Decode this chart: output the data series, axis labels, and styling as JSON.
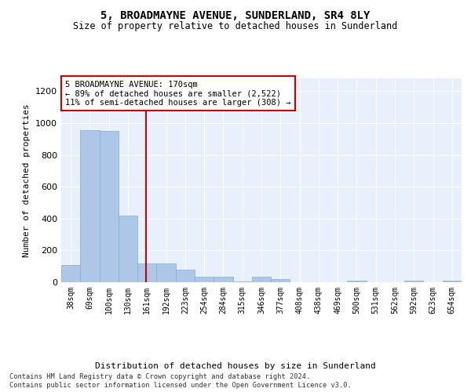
{
  "title": "5, BROADMAYNE AVENUE, SUNDERLAND, SR4 8LY",
  "subtitle": "Size of property relative to detached houses in Sunderland",
  "xlabel": "Distribution of detached houses by size in Sunderland",
  "ylabel": "Number of detached properties",
  "bin_labels": [
    "38sqm",
    "69sqm",
    "100sqm",
    "130sqm",
    "161sqm",
    "192sqm",
    "223sqm",
    "254sqm",
    "284sqm",
    "315sqm",
    "346sqm",
    "377sqm",
    "408sqm",
    "438sqm",
    "469sqm",
    "500sqm",
    "531sqm",
    "562sqm",
    "592sqm",
    "623sqm",
    "654sqm"
  ],
  "bar_values": [
    110,
    955,
    950,
    420,
    120,
    120,
    80,
    35,
    35,
    5,
    35,
    20,
    0,
    0,
    0,
    10,
    0,
    0,
    10,
    0,
    10
  ],
  "bar_color": "#aec6e8",
  "bar_edge_color": "#7aafd4",
  "vline_x_index": 3.95,
  "vline_color": "#cc0000",
  "annotation_text": "5 BROADMAYNE AVENUE: 170sqm\n← 89% of detached houses are smaller (2,522)\n11% of semi-detached houses are larger (308) →",
  "annotation_box_color": "#ffffff",
  "annotation_box_edge": "#cc0000",
  "ylim": [
    0,
    1280
  ],
  "yticks": [
    0,
    200,
    400,
    600,
    800,
    1000,
    1200
  ],
  "footer_line1": "Contains HM Land Registry data © Crown copyright and database right 2024.",
  "footer_line2": "Contains public sector information licensed under the Open Government Licence v3.0.",
  "background_color": "#e8f0fb",
  "fig_background": "#ffffff"
}
